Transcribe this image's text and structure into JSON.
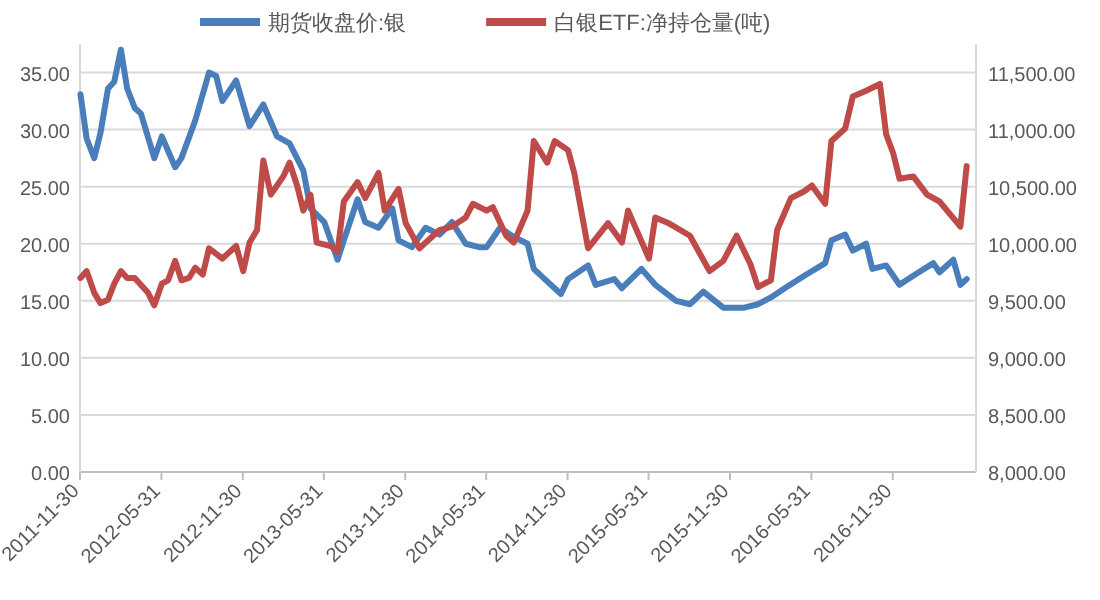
{
  "chart_data": {
    "type": "line",
    "legend": "top",
    "grid": "y",
    "xlim": [
      "2011-11-30",
      "2017-06-05"
    ],
    "xticks": [
      "2011-11-30",
      "2012-05-31",
      "2012-11-30",
      "2013-05-31",
      "2013-11-30",
      "2014-05-31",
      "2014-11-30",
      "2015-05-31",
      "2015-11-30",
      "2016-05-31",
      "2016-11-30"
    ],
    "ylim": [
      0,
      37.5
    ],
    "yticks": [
      {
        "value": 0,
        "label": "0.00"
      },
      {
        "value": 5,
        "label": "5.00"
      },
      {
        "value": 10,
        "label": "10.00"
      },
      {
        "value": 15,
        "label": "15.00"
      },
      {
        "value": 20,
        "label": "20.00"
      },
      {
        "value": 25,
        "label": "25.00"
      },
      {
        "value": 30,
        "label": "30.00"
      },
      {
        "value": 35,
        "label": "35.00"
      }
    ],
    "y2lim": [
      8000,
      11750
    ],
    "y2ticks": [
      {
        "value": 8000,
        "label": "8,000.00"
      },
      {
        "value": 8500,
        "label": "8,500.00"
      },
      {
        "value": 9000,
        "label": "9,000.00"
      },
      {
        "value": 9500,
        "label": "9,500.00"
      },
      {
        "value": 10000,
        "label": "10,000.00"
      },
      {
        "value": 10500,
        "label": "10,500.00"
      },
      {
        "value": 11000,
        "label": "11,000.00"
      },
      {
        "value": 11500,
        "label": "11,500.00"
      }
    ],
    "series": [
      {
        "name": "期货收盘价:银",
        "color": "#4a7ebb",
        "x": [
          "2011-12-01",
          "2011-12-15",
          "2012-01-01",
          "2012-01-15",
          "2012-02-01",
          "2012-02-15",
          "2012-03-01",
          "2012-03-15",
          "2012-04-01",
          "2012-04-15",
          "2012-05-15",
          "2012-06-01",
          "2012-07-01",
          "2012-07-15",
          "2012-08-15",
          "2012-09-15",
          "2012-10-01",
          "2012-10-15",
          "2012-11-15",
          "2012-12-15",
          "2013-01-15",
          "2013-02-15",
          "2013-03-15",
          "2013-04-15",
          "2013-05-01",
          "2013-06-01",
          "2013-07-01",
          "2013-07-15",
          "2013-08-15",
          "2013-09-01",
          "2013-10-01",
          "2013-11-01",
          "2013-11-15",
          "2013-12-15",
          "2014-01-15",
          "2014-02-15",
          "2014-03-15",
          "2014-04-15",
          "2014-05-15",
          "2014-06-01",
          "2014-07-01",
          "2014-08-01",
          "2014-09-01",
          "2014-09-15",
          "2014-10-15",
          "2014-11-15",
          "2014-12-01",
          "2015-01-15",
          "2015-02-01",
          "2015-03-15",
          "2015-04-01",
          "2015-05-15",
          "2015-06-15",
          "2015-08-01",
          "2015-09-01",
          "2015-10-01",
          "2015-11-15",
          "2016-01-01",
          "2016-02-01",
          "2016-03-01",
          "2016-04-01",
          "2016-05-15",
          "2016-07-01",
          "2016-07-15",
          "2016-08-15",
          "2016-09-01",
          "2016-10-01",
          "2016-10-15",
          "2016-11-15",
          "2016-12-15",
          "2017-01-15",
          "2017-03-01",
          "2017-03-15",
          "2017-04-15",
          "2017-05-01",
          "2017-05-15"
        ],
        "values": [
          33.1,
          29.2,
          27.5,
          29.7,
          33.6,
          34.2,
          37.0,
          33.6,
          31.9,
          31.4,
          27.5,
          29.4,
          26.7,
          27.5,
          30.8,
          35.0,
          34.7,
          32.5,
          34.3,
          30.3,
          32.2,
          29.4,
          28.8,
          26.4,
          23.1,
          21.9,
          18.6,
          20.3,
          23.9,
          21.9,
          21.4,
          23.1,
          20.3,
          19.7,
          21.4,
          20.8,
          21.9,
          20.0,
          19.7,
          19.7,
          21.4,
          20.6,
          20.0,
          17.8,
          16.7,
          15.6,
          16.9,
          18.1,
          16.4,
          16.9,
          16.1,
          17.8,
          16.4,
          15.0,
          14.7,
          15.8,
          14.4,
          14.4,
          14.7,
          15.3,
          16.1,
          17.2,
          18.3,
          20.3,
          20.8,
          19.4,
          20.0,
          17.8,
          18.1,
          16.4,
          17.2,
          18.3,
          17.5,
          18.6,
          16.4,
          16.9
        ]
      },
      {
        "name": "白银ETF:净持仓量(吨)",
        "color": "#be4b48",
        "axis": "y2",
        "x": [
          "2011-12-01",
          "2011-12-15",
          "2012-01-01",
          "2012-01-15",
          "2012-02-01",
          "2012-02-15",
          "2012-03-01",
          "2012-03-15",
          "2012-04-01",
          "2012-05-01",
          "2012-05-15",
          "2012-06-01",
          "2012-06-15",
          "2012-07-01",
          "2012-07-15",
          "2012-08-01",
          "2012-08-15",
          "2012-09-01",
          "2012-09-15",
          "2012-10-15",
          "2012-11-15",
          "2012-12-01",
          "2012-12-15",
          "2013-01-01",
          "2013-01-15",
          "2013-02-01",
          "2013-03-01",
          "2013-03-15",
          "2013-04-01",
          "2013-04-15",
          "2013-05-01",
          "2013-05-15",
          "2013-06-15",
          "2013-07-01",
          "2013-07-15",
          "2013-08-15",
          "2013-09-01",
          "2013-10-01",
          "2013-10-15",
          "2013-11-15",
          "2013-12-01",
          "2014-01-01",
          "2014-02-01",
          "2014-02-15",
          "2014-03-15",
          "2014-04-15",
          "2014-05-01",
          "2014-06-01",
          "2014-06-15",
          "2014-07-15",
          "2014-08-01",
          "2014-09-01",
          "2014-09-15",
          "2014-10-15",
          "2014-11-01",
          "2014-12-01",
          "2014-12-15",
          "2015-01-01",
          "2015-01-15",
          "2015-03-01",
          "2015-04-01",
          "2015-04-15",
          "2015-06-01",
          "2015-06-15",
          "2015-07-15",
          "2015-09-01",
          "2015-10-15",
          "2015-11-15",
          "2015-12-15",
          "2016-01-15",
          "2016-02-01",
          "2016-03-01",
          "2016-03-15",
          "2016-04-15",
          "2016-05-15",
          "2016-06-01",
          "2016-07-01",
          "2016-07-15",
          "2016-08-15",
          "2016-09-01",
          "2016-10-01",
          "2016-11-01",
          "2016-11-15",
          "2016-12-01",
          "2016-12-15",
          "2017-01-15",
          "2017-02-15",
          "2017-03-15",
          "2017-04-01",
          "2017-05-01",
          "2017-05-15"
        ],
        "values": [
          9700,
          9760,
          9570,
          9480,
          9510,
          9650,
          9760,
          9700,
          9700,
          9570,
          9460,
          9650,
          9680,
          9850,
          9680,
          9700,
          9790,
          9730,
          9960,
          9870,
          9980,
          9760,
          10010,
          10120,
          10730,
          10430,
          10590,
          10710,
          10510,
          10290,
          10430,
          10010,
          9980,
          9930,
          10370,
          10540,
          10400,
          10620,
          10290,
          10480,
          10180,
          9960,
          10070,
          10120,
          10150,
          10230,
          10350,
          10290,
          10320,
          10070,
          10010,
          10290,
          10900,
          10710,
          10900,
          10820,
          10620,
          10260,
          9960,
          10180,
          10010,
          10290,
          9870,
          10230,
          10180,
          10070,
          9760,
          9850,
          10070,
          9820,
          9620,
          9680,
          10120,
          10400,
          10460,
          10510,
          10350,
          10900,
          11010,
          11290,
          11340,
          11400,
          10960,
          10790,
          10570,
          10590,
          10430,
          10370,
          10290,
          10150,
          10680
        ]
      }
    ]
  }
}
